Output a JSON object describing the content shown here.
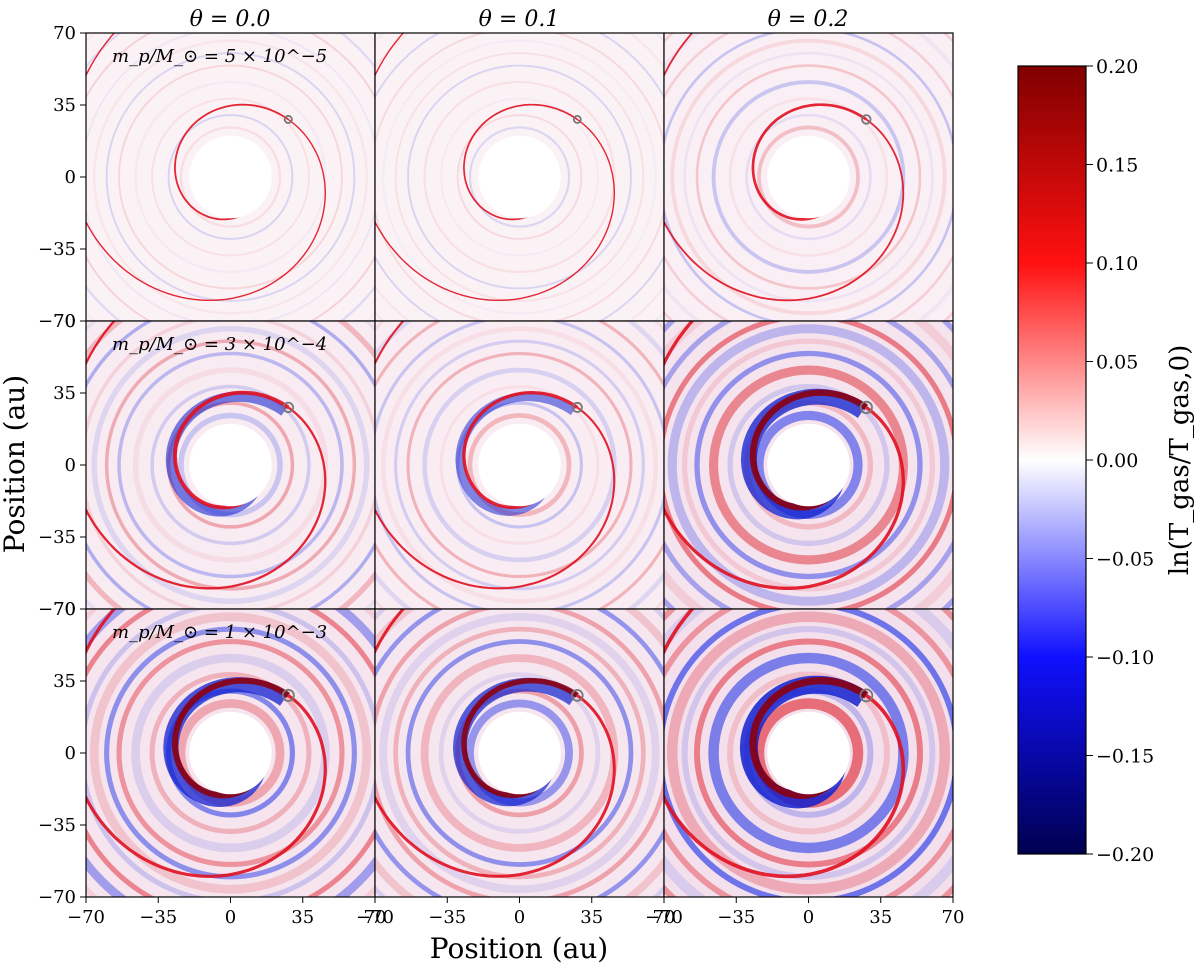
{
  "chart_data": {
    "type": "heatmap",
    "description_units": "au",
    "xlabel": "Position (au)",
    "ylabel": "Position (au)",
    "colorbar_label": "ln(T_gas/T_gas,0)",
    "colorbar_range": [
      -0.2,
      0.2
    ],
    "colorbar_ticks": [
      "0.20",
      "0.15",
      "0.10",
      "0.05",
      "0.00",
      "−0.05",
      "−0.10",
      "−0.15",
      "−0.20"
    ],
    "colorbar_tick_values": [
      0.2,
      0.15,
      0.1,
      0.05,
      0.0,
      -0.05,
      -0.1,
      -0.15,
      -0.2
    ],
    "colormap": "seismic",
    "colors": {
      "max": "#800000",
      "pos": "#ff0000",
      "zero": "#ffffff",
      "neg": "#0000ff",
      "min": "#000050"
    },
    "xlim": [
      -70,
      70
    ],
    "ylim": [
      -70,
      70
    ],
    "x_ticks": [
      "−70",
      "−35",
      "0",
      "35",
      "70"
    ],
    "x_tick_values": [
      -70,
      -35,
      0,
      35,
      70
    ],
    "y_ticks": [
      "70",
      "35",
      "0",
      "−35",
      "−70"
    ],
    "y_tick_values": [
      70,
      35,
      0,
      -35,
      -70
    ],
    "columns": [
      {
        "title": "θ = 0.0",
        "theta": 0.0
      },
      {
        "title": "θ = 0.1",
        "theta": 0.1
      },
      {
        "title": "θ = 0.2",
        "theta": 0.2
      }
    ],
    "rows": [
      {
        "label": "m_p/M_⊙ = 5 × 10^−5",
        "mass_ratio": 5e-05
      },
      {
        "label": "m_p/M_⊙ = 3 × 10^−4",
        "mass_ratio": 0.0003
      },
      {
        "label": "m_p/M_⊙ = 1 × 10^−3",
        "mass_ratio": 0.001
      }
    ],
    "planet_position_au": [
      28,
      28
    ],
    "panel_intensity": [
      [
        0.1,
        0.08,
        0.25
      ],
      [
        0.45,
        0.35,
        0.85
      ],
      [
        0.8,
        0.7,
        1.0
      ]
    ]
  }
}
